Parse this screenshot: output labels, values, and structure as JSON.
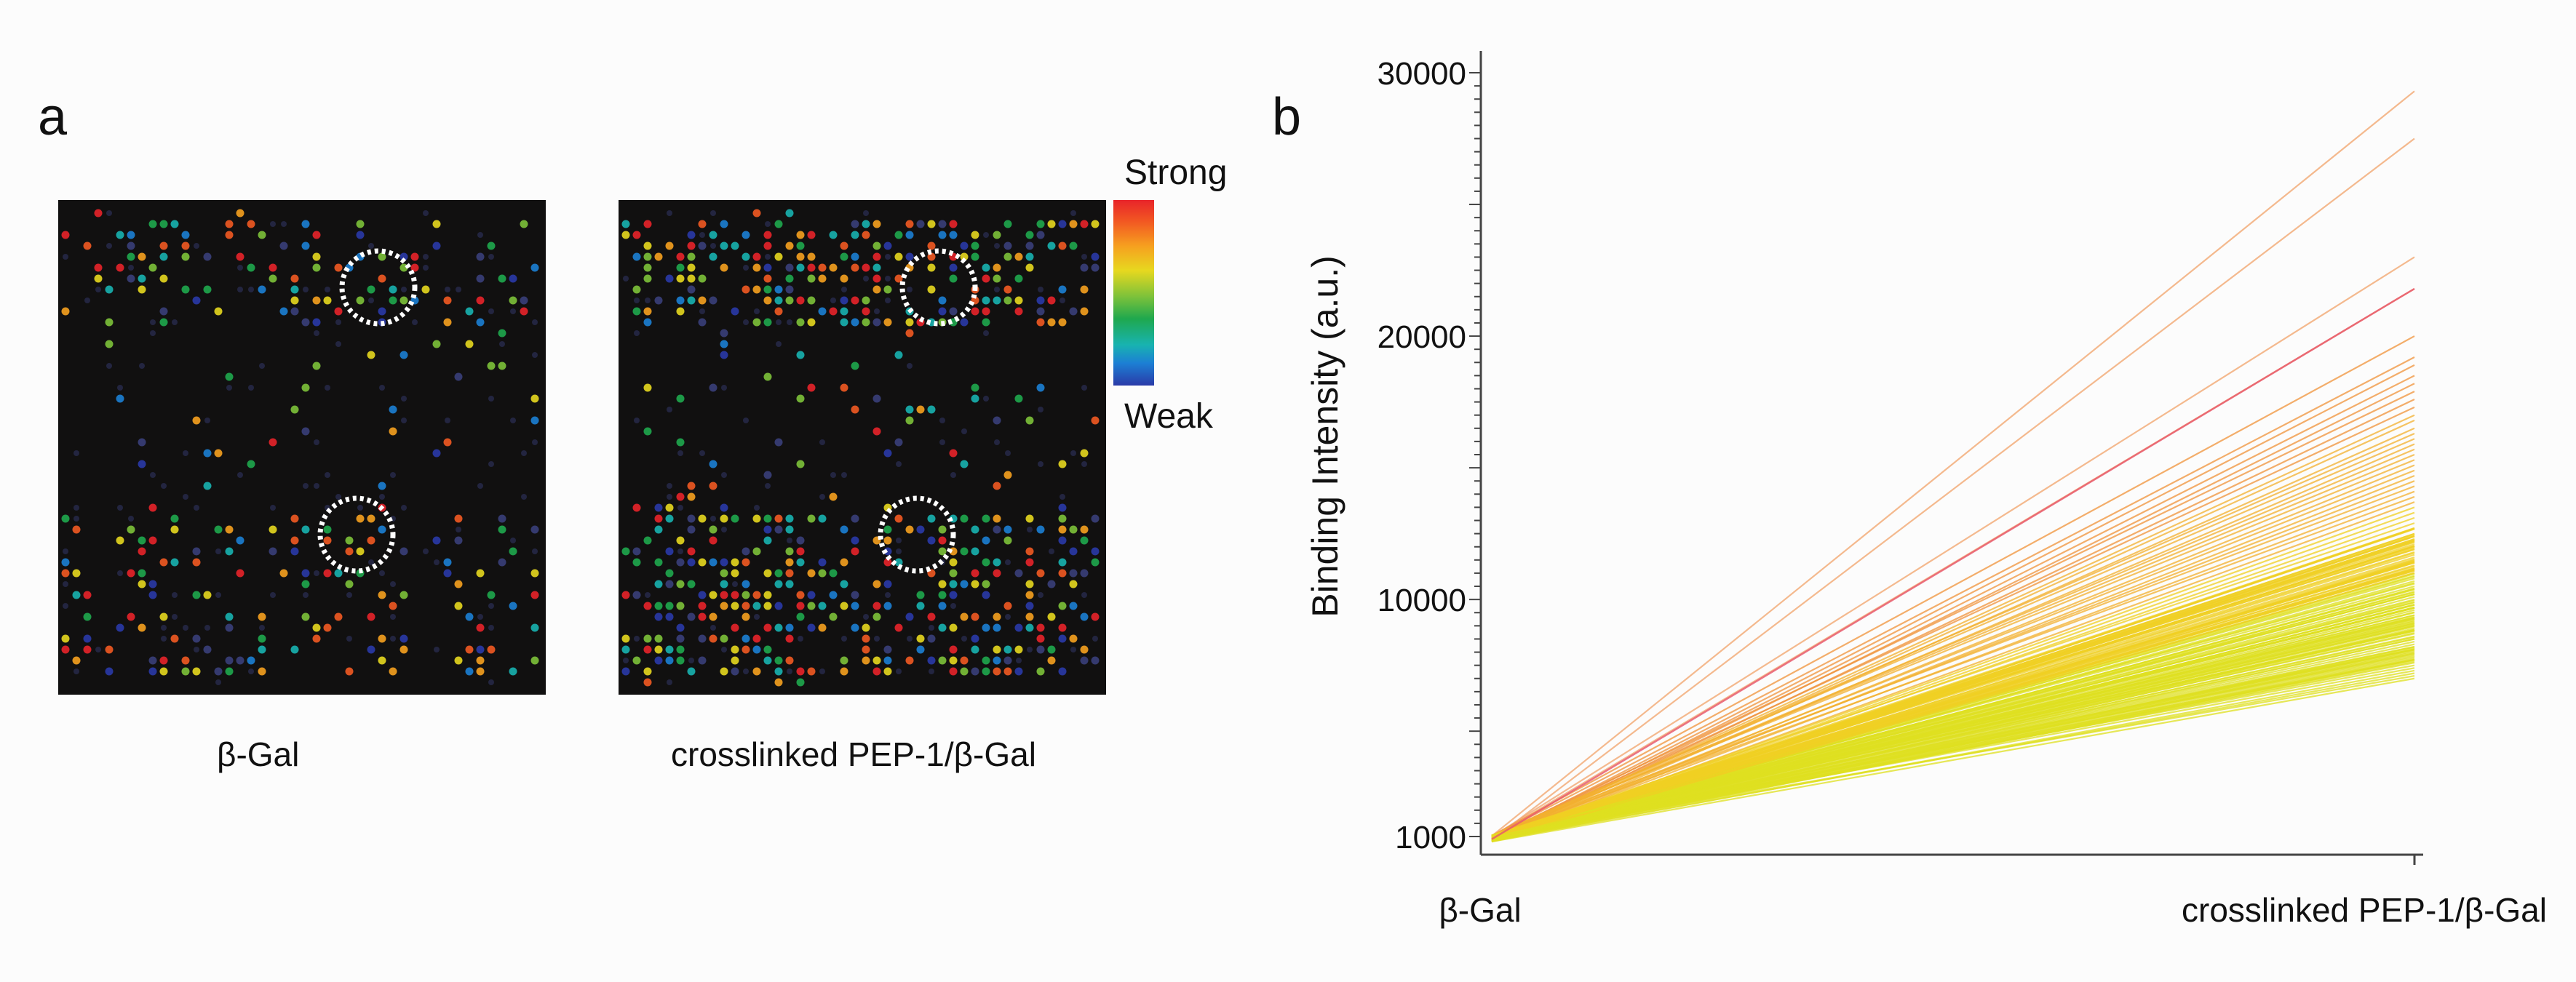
{
  "panel_a": {
    "letter": "a",
    "left_caption": "β-Gal",
    "right_caption": "crosslinked PEP-1/β-Gal",
    "legend": {
      "top": "Strong",
      "bottom": "Weak"
    }
  },
  "panel_b": {
    "letter": "b"
  },
  "colors": {
    "background": "#fcfcfc",
    "array_bg": "#111010",
    "axis": "#444444"
  },
  "chart_data": {
    "type": "line",
    "title": "",
    "ylabel": "Binding Intensity (a.u.)",
    "xlabel": "",
    "categories": [
      "β-Gal",
      "crosslinked PEP-1/β-Gal"
    ],
    "y_ticks": [
      1000,
      10000,
      20000,
      30000
    ],
    "ylim": [
      1000,
      30000
    ],
    "grid": false,
    "series_summary": "approx. 170 peptide binding profiles; all start near 1000 at β-Gal and rise to 7000–29000 at crosslinked PEP-1/β-Gal",
    "end_values": [
      29300,
      27500,
      23000,
      21800,
      20000,
      19200,
      18900,
      18500,
      18200,
      17900,
      17600,
      17300,
      17000,
      16800,
      16500,
      16300,
      16100,
      15900,
      15700,
      15500,
      15300,
      15100,
      14900,
      14700,
      14500,
      14300,
      14100,
      13900,
      13700,
      13500,
      13300,
      13100,
      12900,
      12700,
      12500,
      12400,
      12300,
      12200,
      12100,
      12000,
      11900,
      11800,
      11700,
      11600,
      11500,
      11400,
      11300,
      11200,
      11100,
      11000,
      10900,
      10800,
      10700,
      10600,
      10500,
      10400,
      10300,
      10200,
      10100,
      10000,
      9900,
      9800,
      9700,
      9600,
      9500,
      9400,
      9300,
      9200,
      9100,
      9000,
      8900,
      8800,
      8700,
      8600,
      8500,
      8400,
      8300,
      8200,
      8100,
      8000,
      7900,
      7800,
      7700,
      7600,
      7500,
      7400,
      7300,
      7200,
      7100,
      7000
    ],
    "start_value_range": [
      800,
      1050
    ]
  }
}
